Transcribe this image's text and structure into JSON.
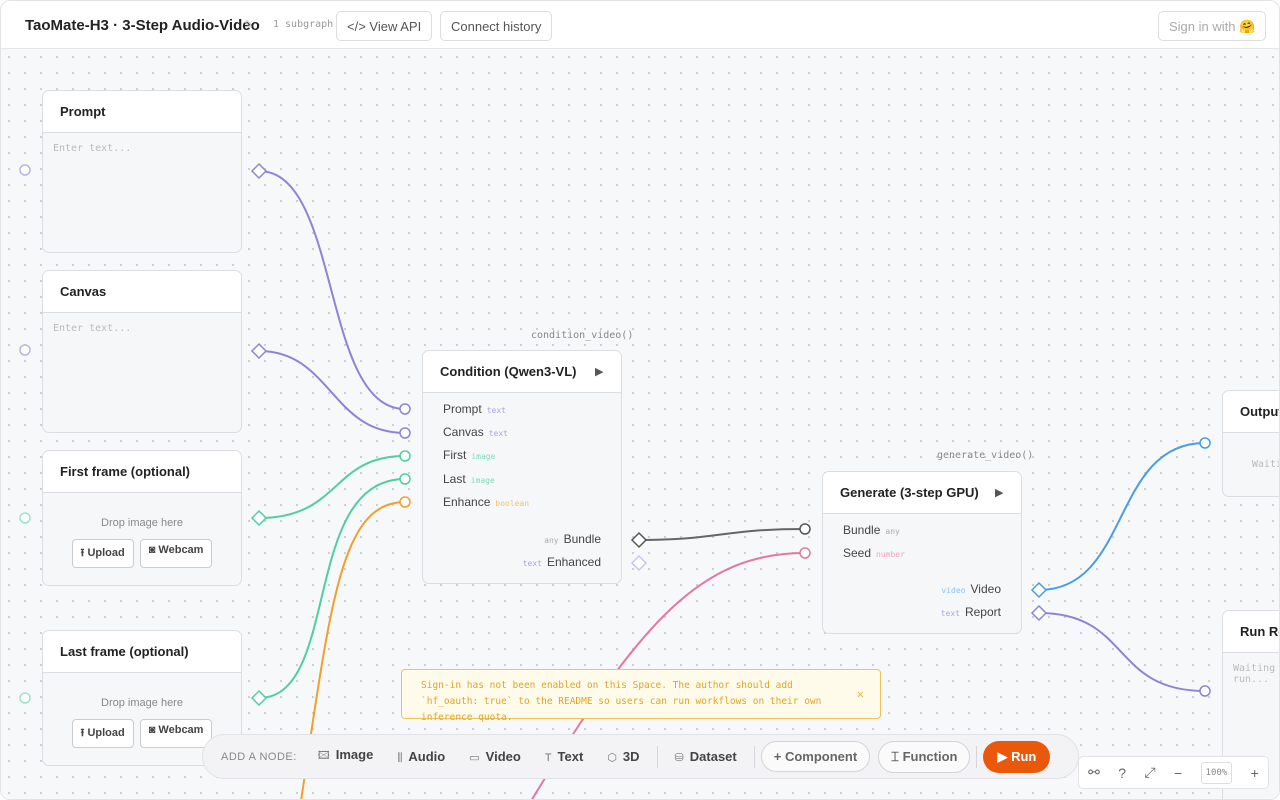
{
  "header": {
    "title": "TaoMate-H3 · 3-Step Audio-Video",
    "subgraph": "1 subgraph",
    "view_api": "View API",
    "connect_history": "Connect history",
    "sign_in": "Sign in with 🤗"
  },
  "nodes": {
    "prompt": {
      "title": "Prompt",
      "placeholder": "Enter text..."
    },
    "canvas": {
      "title": "Canvas",
      "placeholder": "Enter text..."
    },
    "first_frame": {
      "title": "First frame (optional)",
      "drop": "Drop image here",
      "upload": "Upload",
      "webcam": "Webcam"
    },
    "last_frame": {
      "title": "Last frame (optional)",
      "drop": "Drop image here",
      "upload": "Upload",
      "webcam": "Webcam"
    },
    "condition": {
      "function": "condition_video()",
      "title": "Condition (Qwen3-VL)",
      "inputs": [
        {
          "label": "Prompt",
          "type": "text"
        },
        {
          "label": "Canvas",
          "type": "text"
        },
        {
          "label": "First",
          "type": "image"
        },
        {
          "label": "Last",
          "type": "image"
        },
        {
          "label": "Enhance",
          "type": "boolean"
        }
      ],
      "outputs": [
        {
          "label": "Bundle",
          "type": "any"
        },
        {
          "label": "Enhanced",
          "type": "text"
        }
      ]
    },
    "generate": {
      "function": "generate_video()",
      "title": "Generate (3-step GPU)",
      "inputs": [
        {
          "label": "Bundle",
          "type": "any"
        },
        {
          "label": "Seed",
          "type": "number"
        }
      ],
      "outputs": [
        {
          "label": "Video",
          "type": "video"
        },
        {
          "label": "Report",
          "type": "text"
        }
      ]
    },
    "output": {
      "title": "Output",
      "status": "Waiting..."
    },
    "run_report": {
      "title": "Run Report",
      "status": "Waiting for run..."
    }
  },
  "toast": {
    "message": "Sign-in has not been enabled on this Space. The author should add `hf_oauth: true` to the README so users can run workflows on their own inference quota."
  },
  "toolbar": {
    "label": "ADD A NODE:",
    "items": [
      "Image",
      "Audio",
      "Video",
      "Text",
      "3D",
      "Dataset"
    ],
    "component": "Component",
    "function": "Function",
    "run": "Run"
  },
  "zoom": {
    "help": "?",
    "zoom_out": "−",
    "level": "100%",
    "zoom_in": "+"
  }
}
